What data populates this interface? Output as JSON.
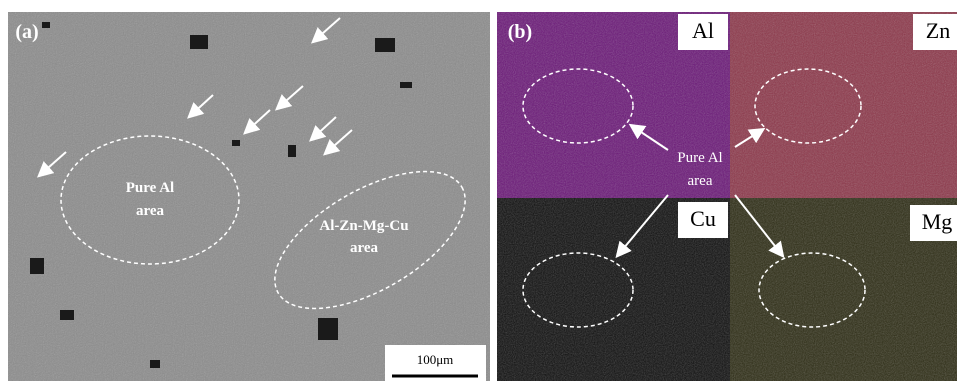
{
  "panel_a": {
    "label": "(a)",
    "annotations": [
      {
        "lines": [
          "Pure Al",
          "area"
        ]
      },
      {
        "lines": [
          "Al-Zn-Mg-Cu",
          "area"
        ]
      }
    ],
    "scale_bar": "100μm"
  },
  "panel_b": {
    "label": "(b)",
    "maps": [
      "Al",
      "Zn",
      "Cu",
      "Mg"
    ],
    "annotation": [
      "Pure Al",
      "area"
    ]
  }
}
